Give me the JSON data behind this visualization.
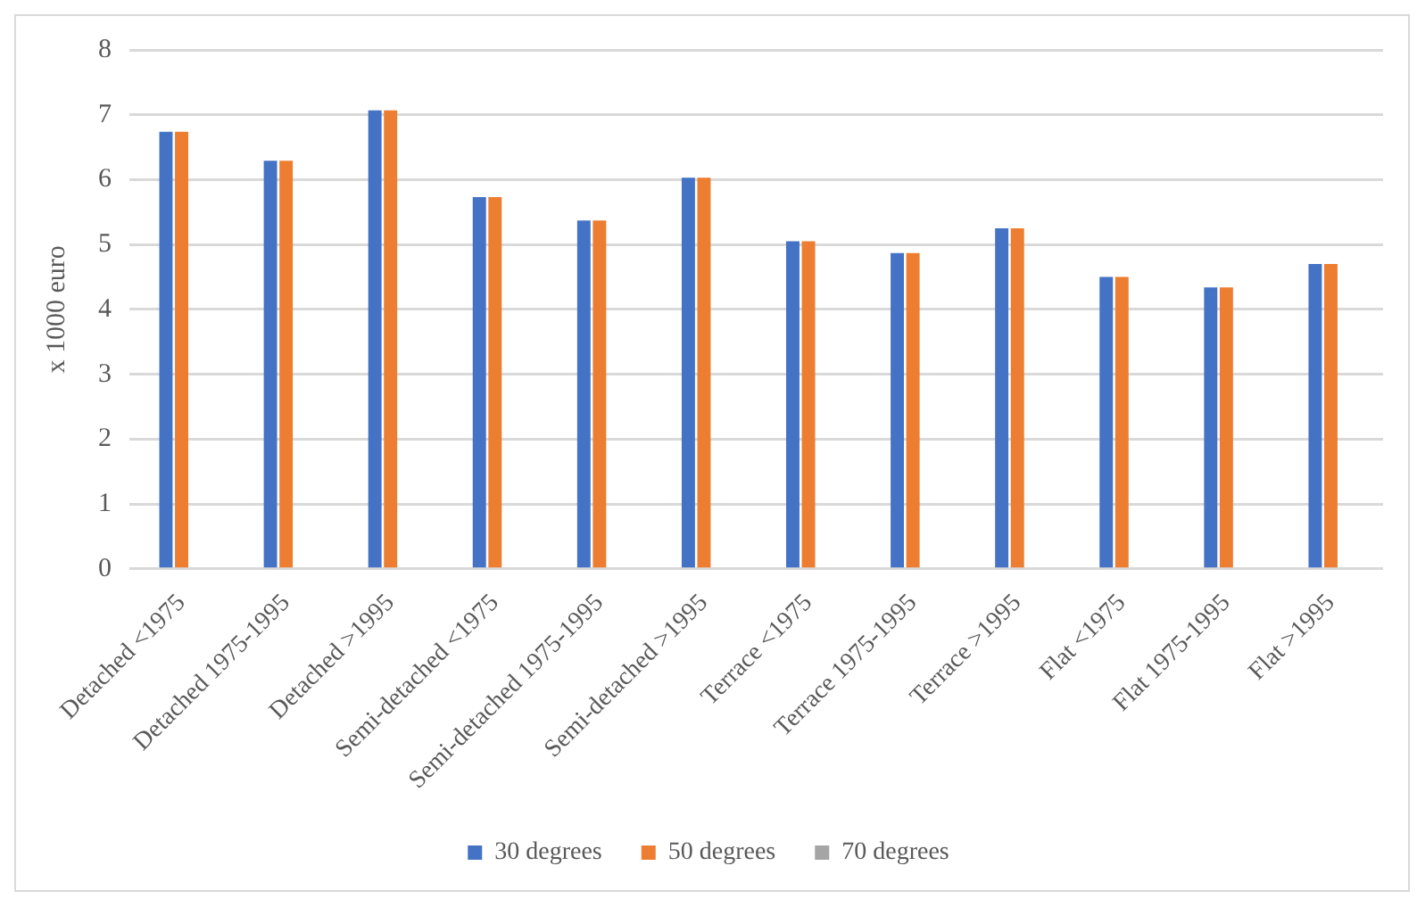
{
  "chart_data": {
    "type": "bar",
    "ylabel": "x 1000 euro",
    "categories": [
      "Detached <1975",
      "Detached 1975-1995",
      "Detached >1995",
      "Semi-detached <1975",
      "Semi-detached 1975-1995",
      "Semi-detached >1995",
      "Terrace <1975",
      "Terrace 1975-1995",
      "Terrace >1995",
      "Flat <1975",
      "Flat 1975-1995",
      "Flat >1995"
    ],
    "series": [
      {
        "name": "30 degrees",
        "color": "#4472c4",
        "values": [
          6.74,
          6.29,
          7.07,
          5.73,
          5.37,
          6.03,
          5.05,
          4.87,
          5.25,
          4.5,
          4.34,
          4.7
        ]
      },
      {
        "name": "50 degrees",
        "color": "#ed7d31",
        "values": [
          6.74,
          6.29,
          7.07,
          5.73,
          5.37,
          6.03,
          5.05,
          4.87,
          5.25,
          4.5,
          4.34,
          4.7
        ]
      },
      {
        "name": "70 degrees",
        "color": "#a5a5a5",
        "values": [
          null,
          null,
          null,
          null,
          null,
          null,
          null,
          null,
          null,
          null,
          null,
          null
        ]
      }
    ],
    "ylim": [
      0,
      8
    ],
    "yticks": [
      0,
      1,
      2,
      3,
      4,
      5,
      6,
      7,
      8
    ],
    "grid": "y",
    "legend": "bottom"
  }
}
